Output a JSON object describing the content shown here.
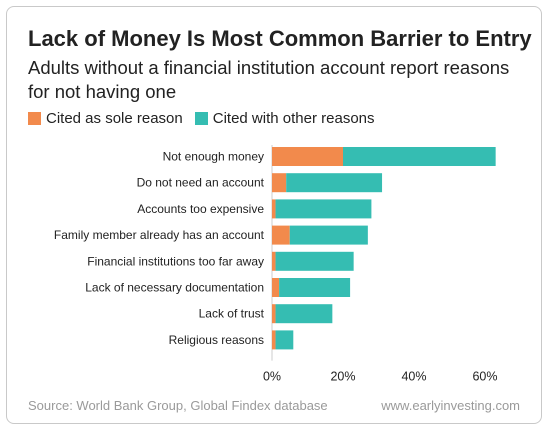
{
  "colors": {
    "sole": "#f28a4c",
    "other": "#35bdb2",
    "axis": "#cccccc",
    "text": "#222222",
    "muted": "#9a9a9a"
  },
  "legend": {
    "sole_label": "Cited as sole reason",
    "other_label": "Cited with other reasons"
  },
  "source": "Source: World Bank Group, Global Findex database",
  "website": "www.earlyinvesting.com",
  "chart_data": {
    "type": "bar",
    "orientation": "horizontal",
    "stacked": true,
    "title": "Lack of Money Is Most Common Barrier to Entry",
    "subtitle": "Adults without a financial institution account report reasons for not having one",
    "categories": [
      "Not enough money",
      "Do not need an account",
      "Accounts too expensive",
      "Family member already has an account",
      "Financial institutions too far away",
      "Lack of necessary documentation",
      "Lack of trust",
      "Religious reasons"
    ],
    "series": [
      {
        "name": "Cited as sole reason",
        "values": [
          20,
          4,
          1,
          5,
          1,
          2,
          1,
          1
        ]
      },
      {
        "name": "Cited with other reasons",
        "values": [
          43,
          27,
          27,
          22,
          22,
          20,
          16,
          5
        ]
      }
    ],
    "xlim": [
      0,
      65
    ],
    "xticks": [
      0,
      20,
      40,
      60
    ],
    "xtick_labels": [
      "0%",
      "20%",
      "40%",
      "60%"
    ],
    "legend_position": "top-left",
    "grid": false
  }
}
